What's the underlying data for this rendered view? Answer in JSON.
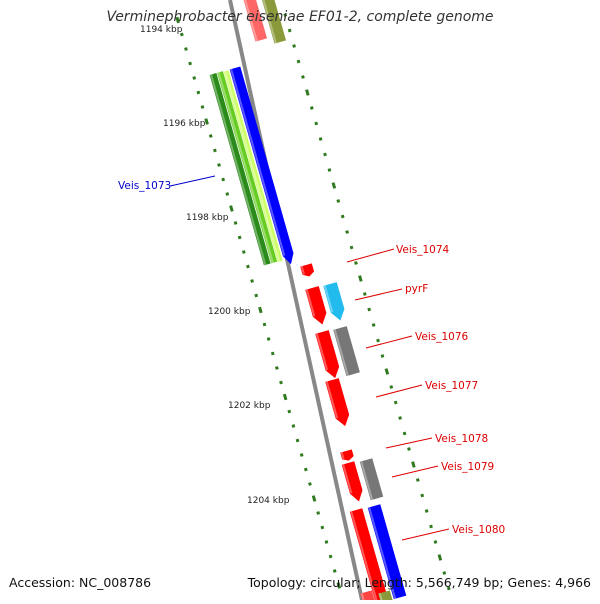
{
  "header": {
    "title": "Verminephrobacter eiseniae EF01-2, complete genome"
  },
  "footer": {
    "accession": "Accession: NC_008786",
    "summary": "Topology: circular; Length: 5,566,749 bp; Genes: 4,966"
  },
  "scale_labels": [
    "1194 kbp",
    "1196 kbp",
    "1198 kbp",
    "1200 kbp",
    "1202 kbp",
    "1204 kbp"
  ],
  "gene_labels": [
    {
      "text": "Veis_1073",
      "color": "#0000cc"
    },
    {
      "text": "Veis_1074",
      "color": "#dd0000"
    },
    {
      "text": "pyrF",
      "color": "#dd0000"
    },
    {
      "text": "Veis_1076",
      "color": "#dd0000"
    },
    {
      "text": "Veis_1077",
      "color": "#dd0000"
    },
    {
      "text": "Veis_1078",
      "color": "#dd0000"
    },
    {
      "text": "Veis_1079",
      "color": "#dd0000"
    },
    {
      "text": "Veis_1080",
      "color": "#dd0000"
    }
  ],
  "colors": {
    "backbone": "#888888",
    "tick": "#2f7a1f",
    "cds": "#ff0000",
    "blue": "#0000ff",
    "cyan": "#22bbee",
    "grey": "#777777",
    "olive": "#8a9a3a",
    "green_dark": "#2a8a1a",
    "green_mid": "#66cc22",
    "green_light": "#ccff66"
  }
}
